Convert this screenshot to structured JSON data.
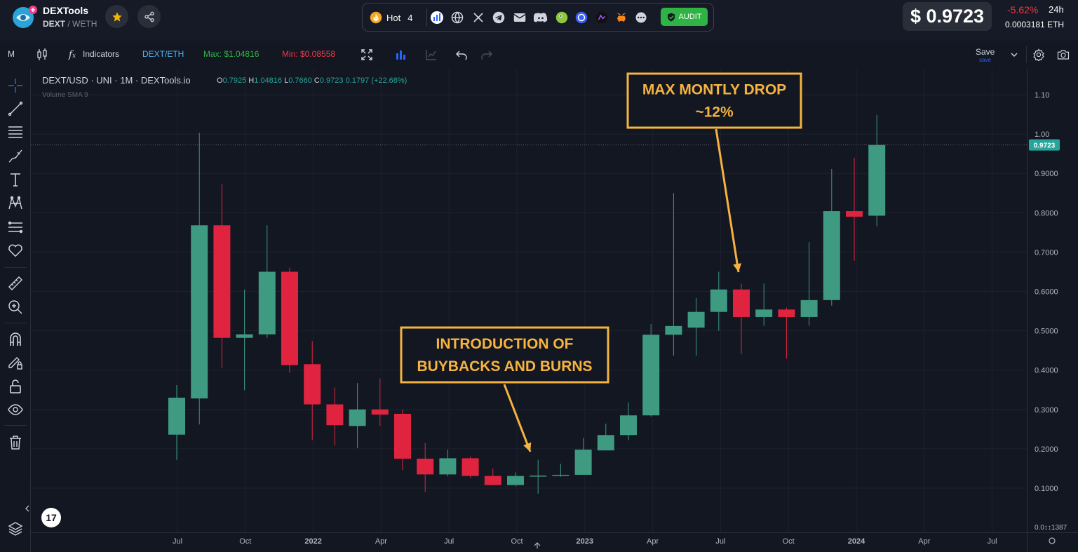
{
  "header": {
    "token_name": "DEXTools",
    "pair_base": "DEXT",
    "pair_quote": "/ WETH",
    "hot_label": "Hot",
    "hot_count": "4",
    "audit_label": "AUDIT",
    "price": "$ 0.9723",
    "change_pct": "-5.62%",
    "change_period": "24h",
    "eth_price": "0.0003181 ETH",
    "colors": {
      "negative": "#f23645",
      "audit": "#2fb344",
      "hot": "#f5a623"
    }
  },
  "toolbar": {
    "timeframe": "M",
    "indicators_label": "Indicators",
    "pair_label": "DEXT/ETH",
    "max_label": "Max: $1.04816",
    "min_label": "Min: $0.08558",
    "save_label": "Save",
    "save_sub": "save"
  },
  "legend": {
    "title": "DEXT/USD · UNI · 1M · DEXTools.io",
    "o_key": "O",
    "o_val": "0.7925",
    "h_key": "H",
    "h_val": "1.04816",
    "l_key": "L",
    "l_val": "0.7660",
    "c_key": "C",
    "c_val": "0.9723",
    "chg": "0.1797 (+22.68%)",
    "volume_label": "Volume SMA 9"
  },
  "chart_data": {
    "type": "candlestick",
    "title": "DEXT/USD · UNI · 1M · DEXTools.io",
    "interval": "1M",
    "colors": {
      "up": "#3e9a81",
      "down": "#e0243f",
      "annotation": "#f6b33f",
      "last_price": "#26a69a"
    },
    "y_axis": {
      "ticks": [
        0.1,
        0.2,
        0.3,
        0.4,
        0.5,
        0.6,
        0.7,
        0.8,
        0.9,
        1.0,
        1.1
      ],
      "tick_labels": [
        "0.1000",
        "0.2000",
        "0.3000",
        "0.4000",
        "0.5000",
        "0.6000",
        "0.7000",
        "0.8000",
        "0.9000",
        "1.00",
        "1.10"
      ],
      "bottom_label": "0.0↕↕1387",
      "range": [
        0.003,
        1.13
      ]
    },
    "x_axis": {
      "labels": [
        "Jul",
        "Oct",
        "2022",
        "Apr",
        "Jul",
        "Oct",
        "2023",
        "Apr",
        "Jul",
        "Oct",
        "2024",
        "Apr",
        "Jul"
      ]
    },
    "last_price": 0.9723,
    "last_price_label": "0.9723",
    "candles": [
      {
        "o": 0.236,
        "h": 0.362,
        "l": 0.172,
        "c": 0.33
      },
      {
        "o": 0.328,
        "h": 1.003,
        "l": 0.262,
        "c": 0.768
      },
      {
        "o": 0.768,
        "h": 0.873,
        "l": 0.406,
        "c": 0.482
      },
      {
        "o": 0.482,
        "h": 0.605,
        "l": 0.349,
        "c": 0.491
      },
      {
        "o": 0.491,
        "h": 0.768,
        "l": 0.482,
        "c": 0.65
      },
      {
        "o": 0.65,
        "h": 0.66,
        "l": 0.393,
        "c": 0.413
      },
      {
        "o": 0.415,
        "h": 0.474,
        "l": 0.222,
        "c": 0.313
      },
      {
        "o": 0.313,
        "h": 0.356,
        "l": 0.208,
        "c": 0.26
      },
      {
        "o": 0.258,
        "h": 0.367,
        "l": 0.202,
        "c": 0.3
      },
      {
        "o": 0.3,
        "h": 0.379,
        "l": 0.258,
        "c": 0.287
      },
      {
        "o": 0.289,
        "h": 0.3,
        "l": 0.146,
        "c": 0.175
      },
      {
        "o": 0.175,
        "h": 0.215,
        "l": 0.09,
        "c": 0.135
      },
      {
        "o": 0.135,
        "h": 0.198,
        "l": 0.13,
        "c": 0.176
      },
      {
        "o": 0.176,
        "h": 0.18,
        "l": 0.126,
        "c": 0.131
      },
      {
        "o": 0.131,
        "h": 0.15,
        "l": 0.109,
        "c": 0.108
      },
      {
        "o": 0.108,
        "h": 0.14,
        "l": 0.105,
        "c": 0.131
      },
      {
        "o": 0.13,
        "h": 0.172,
        "l": 0.086,
        "c": 0.132
      },
      {
        "o": 0.132,
        "h": 0.162,
        "l": 0.129,
        "c": 0.134
      },
      {
        "o": 0.134,
        "h": 0.228,
        "l": 0.134,
        "c": 0.198
      },
      {
        "o": 0.196,
        "h": 0.264,
        "l": 0.196,
        "c": 0.235
      },
      {
        "o": 0.235,
        "h": 0.318,
        "l": 0.222,
        "c": 0.285
      },
      {
        "o": 0.285,
        "h": 0.517,
        "l": 0.282,
        "c": 0.49
      },
      {
        "o": 0.49,
        "h": 0.85,
        "l": 0.437,
        "c": 0.512
      },
      {
        "o": 0.508,
        "h": 0.583,
        "l": 0.437,
        "c": 0.548
      },
      {
        "o": 0.548,
        "h": 0.65,
        "l": 0.5,
        "c": 0.605
      },
      {
        "o": 0.605,
        "h": 0.62,
        "l": 0.441,
        "c": 0.535
      },
      {
        "o": 0.535,
        "h": 0.62,
        "l": 0.513,
        "c": 0.554
      },
      {
        "o": 0.554,
        "h": 0.559,
        "l": 0.429,
        "c": 0.535
      },
      {
        "o": 0.535,
        "h": 0.725,
        "l": 0.513,
        "c": 0.578
      },
      {
        "o": 0.578,
        "h": 0.911,
        "l": 0.564,
        "c": 0.804
      },
      {
        "o": 0.804,
        "h": 0.94,
        "l": 0.678,
        "c": 0.79
      },
      {
        "o": 0.7925,
        "h": 1.04816,
        "l": 0.766,
        "c": 0.9723
      }
    ],
    "annotations": [
      {
        "text_lines": [
          "MAX MONTLY DROP",
          "~12%"
        ],
        "points_to_candle": 25
      },
      {
        "text_lines": [
          "INTRODUCTION OF",
          "BUYBACKS AND BURNS"
        ],
        "points_to_candle": 16
      }
    ]
  }
}
